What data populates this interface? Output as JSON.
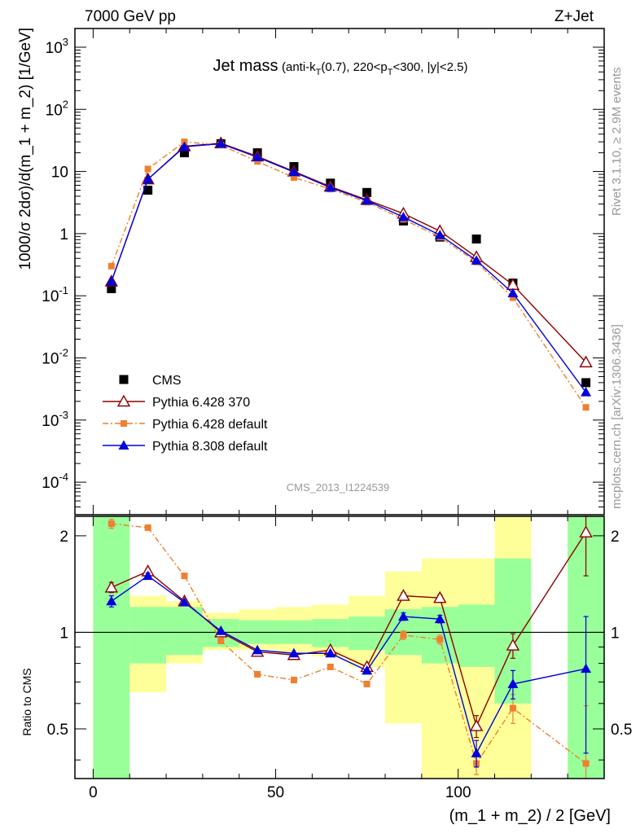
{
  "header": {
    "left": "7000 GeV pp",
    "right": "Z+Jet"
  },
  "side_labels": {
    "rivet": "Rivet 3.1.10, ≥ 2.9M events",
    "mcplots": "mcplots.cern.ch [arXiv:1306.3436]"
  },
  "chart_data": {
    "type": "scatter",
    "title": "Jet mass",
    "title_detail_parts": [
      "(anti-k",
      "T",
      "(0.7), 220<p",
      "T",
      "<300, |y|<2.5)"
    ],
    "analysis_id": "CMS_2013_I1224539",
    "xlabel": "(m_1 + m_2) / 2 [GeV]",
    "ylabel": "1000/σ 2dσ)/d(m_1 + m_2) [1/GeV]",
    "ratio_ylabel": "Ratio to CMS",
    "xlim": [
      -5,
      140
    ],
    "ylim": [
      3e-05,
      2000
    ],
    "ratio_ylim": [
      0.35,
      2.3
    ],
    "yscale": "log",
    "ratio_yscale": "log",
    "x_ticks": [
      0,
      50,
      100
    ],
    "y_ticks": [
      {
        "value": 0.0001,
        "mantissa": "10",
        "exponent": "-4"
      },
      {
        "value": 0.001,
        "mantissa": "10",
        "exponent": "-3"
      },
      {
        "value": 0.01,
        "mantissa": "10",
        "exponent": "-2"
      },
      {
        "value": 0.1,
        "mantissa": "10",
        "exponent": "-1"
      },
      {
        "value": 1,
        "mantissa": "1",
        "exponent": ""
      },
      {
        "value": 10,
        "mantissa": "10",
        "exponent": ""
      },
      {
        "value": 100,
        "mantissa": "10",
        "exponent": "2"
      },
      {
        "value": 1000,
        "mantissa": "10",
        "exponent": "3"
      }
    ],
    "ratio_ticks": [
      0.5,
      1,
      2
    ],
    "legend_position": "lower-left",
    "x": [
      5,
      15,
      25,
      35,
      45,
      55,
      65,
      75,
      85,
      95,
      105,
      115,
      135
    ],
    "bin_edges": [
      0,
      10,
      20,
      30,
      40,
      50,
      60,
      70,
      80,
      90,
      100,
      110,
      120,
      130,
      140
    ],
    "series": [
      {
        "name": "CMS",
        "color": "#000000",
        "values": [
          0.13,
          5.0,
          20.0,
          28.0,
          20.0,
          12.0,
          6.5,
          4.6,
          1.6,
          0.88,
          0.82,
          0.16,
          0.004
        ]
      },
      {
        "name": "Pythia 6.428 370",
        "color": "#8b0000",
        "values": [
          0.17,
          7.5,
          25.5,
          28.5,
          17.5,
          10.0,
          5.7,
          3.5,
          2.1,
          1.1,
          0.42,
          0.15,
          0.0085
        ],
        "ratio": [
          1.38,
          1.55,
          1.25,
          1.0,
          0.87,
          0.85,
          0.88,
          0.78,
          1.3,
          1.28,
          0.51,
          0.91,
          2.05
        ],
        "ratio_err": [
          0.05,
          0.03,
          0.02,
          0.02,
          0.02,
          0.02,
          0.02,
          0.02,
          0.03,
          0.03,
          0.04,
          0.08,
          0.55
        ]
      },
      {
        "name": "Pythia 6.428 default",
        "color": "#f07f2f",
        "values": [
          0.3,
          11.0,
          30.0,
          26.5,
          14.5,
          8.0,
          5.2,
          3.2,
          1.7,
          0.88,
          0.35,
          0.093,
          0.0016
        ],
        "ratio": [
          2.18,
          2.12,
          1.5,
          0.94,
          0.74,
          0.71,
          0.78,
          0.69,
          0.98,
          0.95,
          0.39,
          0.58,
          0.39
        ],
        "ratio_err": [
          0.07,
          0.03,
          0.02,
          0.02,
          0.02,
          0.02,
          0.02,
          0.02,
          0.03,
          0.03,
          0.03,
          0.06,
          0.2
        ]
      },
      {
        "name": "Pythia 8.308 default",
        "color": "#0000dd",
        "values": [
          0.17,
          7.5,
          25.0,
          28.0,
          17.0,
          9.8,
          5.5,
          3.4,
          1.85,
          0.95,
          0.37,
          0.11,
          0.0028
        ],
        "ratio": [
          1.25,
          1.5,
          1.24,
          1.01,
          0.88,
          0.86,
          0.86,
          0.76,
          1.12,
          1.1,
          0.42,
          0.69,
          0.77
        ],
        "ratio_err": [
          0.05,
          0.03,
          0.02,
          0.02,
          0.02,
          0.02,
          0.02,
          0.02,
          0.03,
          0.03,
          0.04,
          0.07,
          0.35
        ]
      }
    ],
    "bands": {
      "green_color": "#99ff99",
      "yellow_color": "#ffff99",
      "green": [
        [
          0.35,
          2.3
        ],
        [
          0.8,
          1.2
        ],
        [
          0.85,
          1.2
        ],
        [
          0.9,
          1.1
        ],
        [
          0.92,
          1.09
        ],
        [
          0.92,
          1.09
        ],
        [
          0.9,
          1.1
        ],
        [
          0.88,
          1.12
        ],
        [
          0.85,
          1.18
        ],
        [
          0.8,
          1.2
        ],
        [
          0.78,
          1.22
        ],
        [
          0.6,
          1.7
        ],
        [
          null,
          null
        ],
        [
          0.35,
          2.3
        ]
      ],
      "yellow": [
        [
          0.35,
          2.3
        ],
        [
          0.65,
          1.3
        ],
        [
          0.8,
          1.25
        ],
        [
          0.88,
          1.15
        ],
        [
          0.88,
          1.18
        ],
        [
          0.86,
          1.2
        ],
        [
          0.84,
          1.22
        ],
        [
          0.78,
          1.3
        ],
        [
          0.52,
          1.55
        ],
        [
          0.35,
          1.7
        ],
        [
          0.35,
          1.7
        ],
        [
          0.35,
          2.3
        ],
        [
          null,
          null
        ],
        [
          0.35,
          2.3
        ]
      ]
    }
  }
}
